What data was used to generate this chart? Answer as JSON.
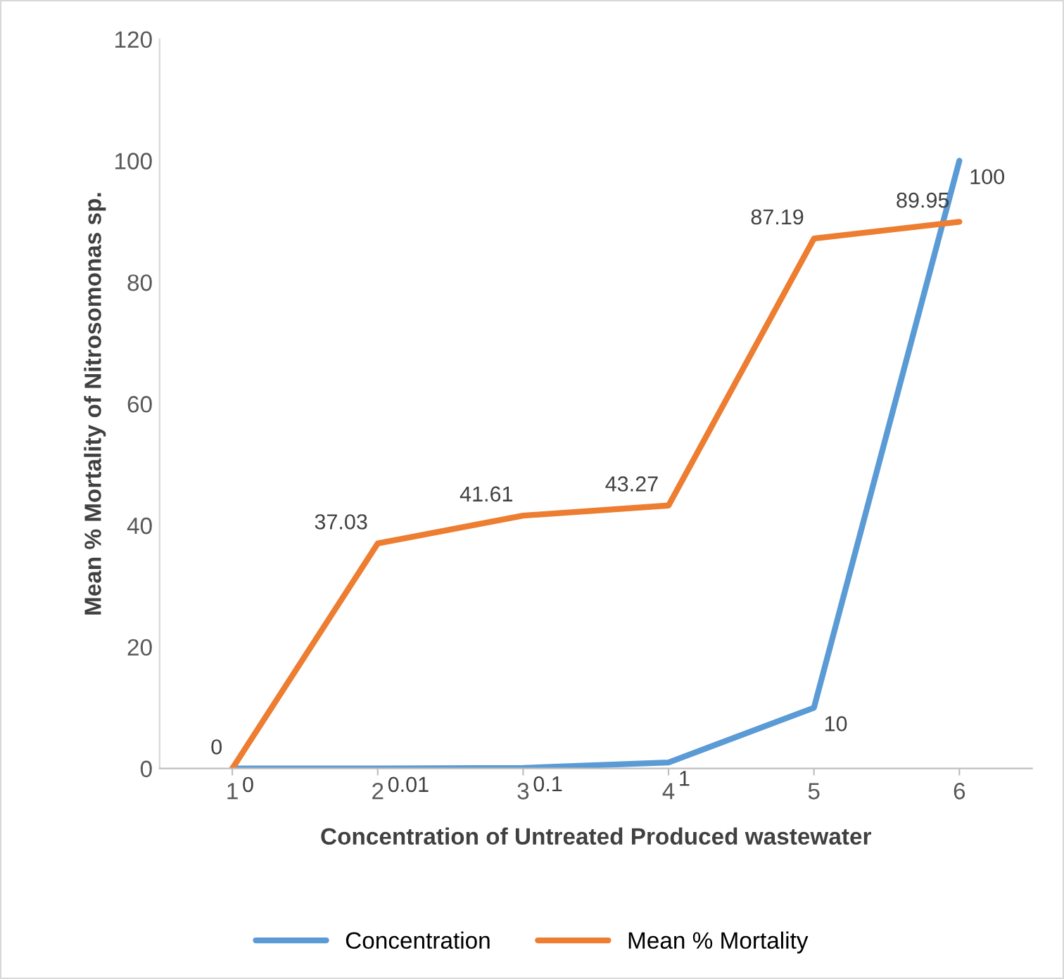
{
  "chart_data": {
    "type": "line",
    "xlabel": "Concentration of Untreated Produced wastewater",
    "ylabel": "Mean % Mortality of Nitrosomonas sp.",
    "categories": [
      "1",
      "2",
      "3",
      "4",
      "5",
      "6"
    ],
    "series": [
      {
        "name": "Concentration",
        "color": "#5b9bd5",
        "values": [
          0,
          0.01,
          0.1,
          1,
          10,
          100
        ]
      },
      {
        "name": "Mean % Mortality",
        "color": "#ed7d31",
        "values": [
          0,
          37.03,
          41.61,
          43.27,
          87.19,
          89.95
        ]
      }
    ],
    "ylim": [
      0,
      120
    ],
    "yticks": [
      0,
      20,
      40,
      60,
      80,
      100,
      120
    ],
    "grid": false,
    "legend": "bottom",
    "data_labels": true,
    "marker": "none",
    "line_style": "solid"
  }
}
